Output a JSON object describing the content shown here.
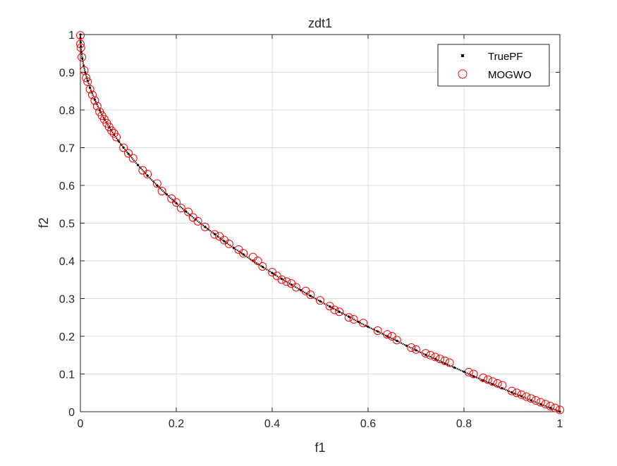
{
  "chart_data": {
    "type": "scatter",
    "title": "zdt1",
    "xlabel": "f1",
    "ylabel": "f2",
    "xlim": [
      0,
      1
    ],
    "ylim": [
      0,
      1
    ],
    "xticks": [
      "0",
      "0.2",
      "0.4",
      "0.6",
      "0.8",
      "1"
    ],
    "yticks": [
      "0",
      "0.1",
      "0.2",
      "0.3",
      "0.4",
      "0.5",
      "0.6",
      "0.7",
      "0.8",
      "0.9",
      "1"
    ],
    "grid": true,
    "legend_position": "top-right",
    "series": [
      {
        "name": "TruePF",
        "marker": "dot",
        "color": "#000000",
        "x": [
          0,
          0.0001,
          0.0004,
          0.001,
          0.002,
          0.004,
          0.007,
          0.01,
          0.015,
          0.02,
          0.03,
          0.04,
          0.05,
          0.06,
          0.07,
          0.08,
          0.09,
          0.1,
          0.12,
          0.14,
          0.16,
          0.18,
          0.2,
          0.22,
          0.24,
          0.26,
          0.28,
          0.3,
          0.32,
          0.34,
          0.36,
          0.38,
          0.4,
          0.42,
          0.44,
          0.46,
          0.48,
          0.5,
          0.52,
          0.54,
          0.56,
          0.58,
          0.6,
          0.62,
          0.64,
          0.66,
          0.68,
          0.7,
          0.72,
          0.74,
          0.76,
          0.78,
          0.8,
          0.82,
          0.84,
          0.86,
          0.88,
          0.9,
          0.92,
          0.94,
          0.96,
          0.98,
          1.0
        ],
        "y": [
          1.0,
          0.99,
          0.98,
          0.968,
          0.955,
          0.937,
          0.916,
          0.9,
          0.878,
          0.859,
          0.827,
          0.8,
          0.776,
          0.755,
          0.735,
          0.717,
          0.7,
          0.684,
          0.654,
          0.626,
          0.6,
          0.576,
          0.553,
          0.531,
          0.51,
          0.49,
          0.471,
          0.452,
          0.434,
          0.417,
          0.4,
          0.384,
          0.368,
          0.352,
          0.337,
          0.322,
          0.307,
          0.293,
          0.279,
          0.265,
          0.252,
          0.238,
          0.225,
          0.213,
          0.2,
          0.188,
          0.175,
          0.163,
          0.151,
          0.14,
          0.128,
          0.117,
          0.106,
          0.094,
          0.083,
          0.073,
          0.062,
          0.051,
          0.041,
          0.03,
          0.02,
          0.01,
          0.0
        ]
      },
      {
        "name": "MOGWO",
        "marker": "circle",
        "color": "#ff0000",
        "x": [
          0.0,
          0.0,
          0.001,
          0.003,
          0.008,
          0.012,
          0.015,
          0.02,
          0.025,
          0.03,
          0.035,
          0.04,
          0.045,
          0.05,
          0.055,
          0.06,
          0.065,
          0.07,
          0.075,
          0.09,
          0.1,
          0.11,
          0.13,
          0.14,
          0.16,
          0.17,
          0.19,
          0.2,
          0.21,
          0.225,
          0.235,
          0.245,
          0.26,
          0.28,
          0.29,
          0.3,
          0.31,
          0.33,
          0.34,
          0.36,
          0.37,
          0.38,
          0.4,
          0.41,
          0.42,
          0.43,
          0.44,
          0.45,
          0.47,
          0.48,
          0.5,
          0.52,
          0.53,
          0.54,
          0.56,
          0.57,
          0.59,
          0.62,
          0.64,
          0.65,
          0.66,
          0.69,
          0.7,
          0.72,
          0.73,
          0.74,
          0.75,
          0.76,
          0.77,
          0.81,
          0.82,
          0.84,
          0.85,
          0.86,
          0.87,
          0.88,
          0.9,
          0.91,
          0.92,
          0.93,
          0.94,
          0.95,
          0.96,
          0.97,
          0.98,
          0.99,
          1.0
        ],
        "y": [
          0.998,
          0.975,
          0.965,
          0.94,
          0.905,
          0.885,
          0.875,
          0.855,
          0.84,
          0.825,
          0.81,
          0.795,
          0.785,
          0.775,
          0.765,
          0.755,
          0.745,
          0.738,
          0.728,
          0.7,
          0.685,
          0.672,
          0.64,
          0.63,
          0.605,
          0.585,
          0.565,
          0.555,
          0.54,
          0.53,
          0.515,
          0.505,
          0.49,
          0.47,
          0.465,
          0.455,
          0.445,
          0.43,
          0.42,
          0.41,
          0.4,
          0.385,
          0.37,
          0.36,
          0.35,
          0.345,
          0.34,
          0.33,
          0.32,
          0.31,
          0.295,
          0.28,
          0.27,
          0.265,
          0.25,
          0.245,
          0.235,
          0.215,
          0.205,
          0.2,
          0.19,
          0.17,
          0.165,
          0.155,
          0.15,
          0.145,
          0.14,
          0.135,
          0.13,
          0.105,
          0.1,
          0.09,
          0.085,
          0.08,
          0.075,
          0.07,
          0.055,
          0.05,
          0.045,
          0.04,
          0.035,
          0.03,
          0.025,
          0.02,
          0.015,
          0.01,
          0.005
        ]
      }
    ]
  }
}
